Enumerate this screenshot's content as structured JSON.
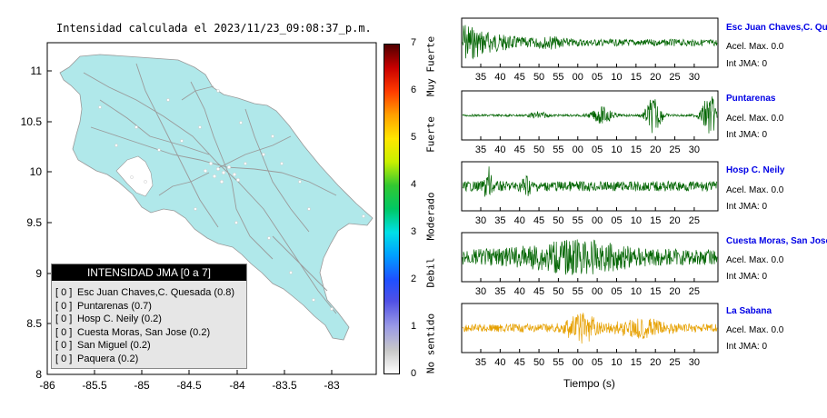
{
  "map": {
    "title": "Intensidad calculada el 2023/11/23_09:08:37_p.m.",
    "lon_ticks": [
      "-86",
      "-85.5",
      "-85",
      "-84.5",
      "-84",
      "-83.5",
      "-83"
    ],
    "lat_ticks": [
      "11",
      "10.5",
      "10",
      "9.5",
      "9",
      "8.5",
      "8"
    ]
  },
  "legend": {
    "title": "INTENSIDAD JMA [0 a 7]",
    "items": [
      {
        "badge": "[ 0 ]",
        "label": "Esc Juan Chaves,C. Quesada (0.8)"
      },
      {
        "badge": "[ 0 ]",
        "label": "Puntarenas (0.7)"
      },
      {
        "badge": "[ 0 ]",
        "label": "Hosp C. Neily (0.2)"
      },
      {
        "badge": "[ 0 ]",
        "label": "Cuesta Moras, San Jose (0.2)"
      },
      {
        "badge": "[ 0 ]",
        "label": "San Miguel (0.2)"
      },
      {
        "badge": "[ 0 ]",
        "label": "Paquera (0.2)"
      }
    ]
  },
  "colorbar": {
    "ticks": [
      "0",
      "1",
      "2",
      "3",
      "4",
      "5",
      "6",
      "7"
    ],
    "words": [
      "No sentido",
      "Debil",
      "Moderado",
      "Fuerte",
      "Muy Fuerte"
    ]
  },
  "chart_data": [
    {
      "type": "line",
      "title": "Esc Juan Chaves,C. Quesada",
      "color": "#006400",
      "x_ticks": [
        "35",
        "40",
        "45",
        "50",
        "55",
        "00",
        "05",
        "10",
        "15",
        "20",
        "25",
        "30"
      ],
      "info": [
        "Acel. Max. 0.0",
        "Int JMA: 0"
      ]
    },
    {
      "type": "line",
      "title": "Puntarenas",
      "color": "#006400",
      "x_ticks": [
        "35",
        "40",
        "45",
        "50",
        "55",
        "00",
        "05",
        "10",
        "15",
        "20",
        "25",
        "30"
      ],
      "info": [
        "Acel. Max. 0.0",
        "Int JMA: 0"
      ]
    },
    {
      "type": "line",
      "title": "Hosp C. Neily",
      "color": "#006400",
      "x_ticks": [
        "30",
        "35",
        "40",
        "45",
        "50",
        "55",
        "00",
        "05",
        "10",
        "15",
        "20",
        "25"
      ],
      "info": [
        "Acel. Max. 0.0",
        "Int JMA: 0"
      ]
    },
    {
      "type": "line",
      "title": "Cuesta Moras, San Jose",
      "color": "#006400",
      "x_ticks": [
        "30",
        "35",
        "40",
        "45",
        "50",
        "55",
        "00",
        "05",
        "10",
        "15",
        "20",
        "25"
      ],
      "info": [
        "Acel. Max. 0.0",
        "Int JMA: 0"
      ]
    },
    {
      "type": "line",
      "title": "La Sabana",
      "color": "#e6a000",
      "x_ticks": [
        "35",
        "40",
        "45",
        "50",
        "55",
        "00",
        "05",
        "10",
        "15",
        "20",
        "25",
        "30"
      ],
      "info": [
        "Acel. Max. 0.0",
        "Int JMA: 0"
      ]
    }
  ],
  "xlabel": "Tiempo (s)"
}
